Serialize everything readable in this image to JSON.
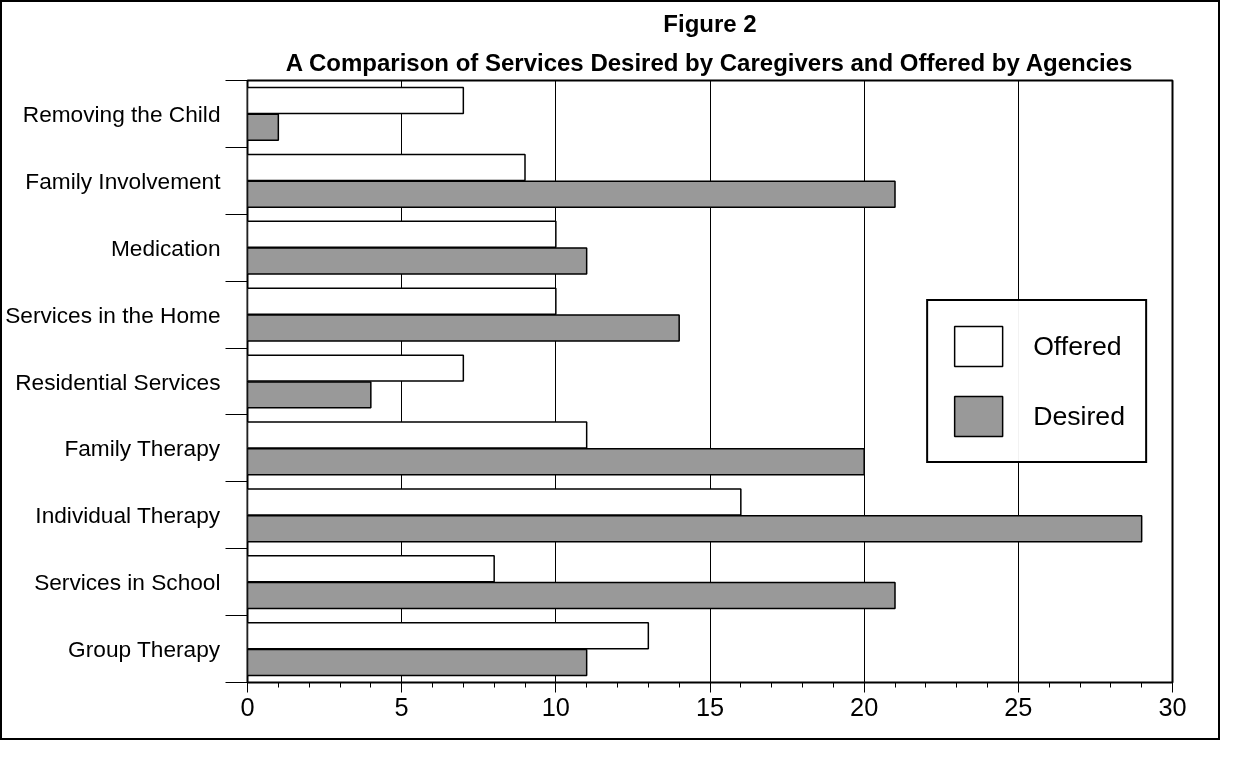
{
  "chart_data": {
    "type": "bar",
    "orientation": "horizontal",
    "title": "Figure 2",
    "subtitle": "A Comparison of Services Desired by Caregivers and Offered by Agencies",
    "categories": [
      "Removing the Child",
      "Family Involvement",
      "Medication",
      "Services in the Home",
      "Residential Services",
      "Family Therapy",
      "Individual Therapy",
      "Services in School",
      "Group Therapy"
    ],
    "series": [
      {
        "name": "Offered",
        "color": "#ffffff",
        "values": [
          7,
          9,
          10,
          10,
          7,
          11,
          16,
          8,
          13
        ]
      },
      {
        "name": "Desired",
        "color": "#999999",
        "values": [
          1,
          21,
          11,
          14,
          4,
          20,
          29,
          21,
          11
        ]
      }
    ],
    "xlim": [
      0,
      30
    ],
    "xticks": [
      0,
      5,
      10,
      15,
      20,
      25,
      30
    ],
    "grid": "x",
    "legend": "right"
  }
}
